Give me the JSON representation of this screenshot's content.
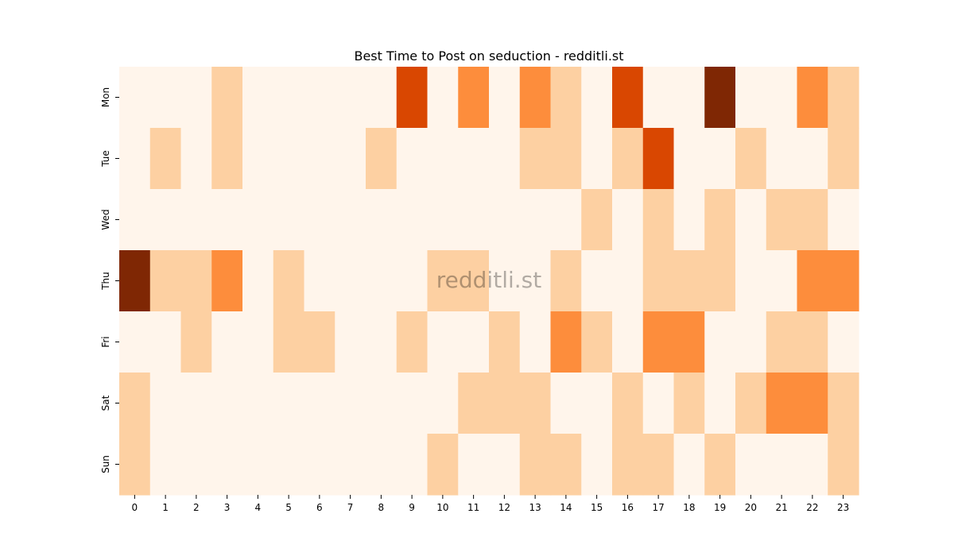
{
  "chart_data": {
    "type": "heatmap",
    "title": "Best Time to Post on seduction - redditli.st",
    "watermark": "redditli.st",
    "xlabel": "",
    "ylabel": "",
    "x_categories": [
      "0",
      "1",
      "2",
      "3",
      "4",
      "5",
      "6",
      "7",
      "8",
      "9",
      "10",
      "11",
      "12",
      "13",
      "14",
      "15",
      "16",
      "17",
      "18",
      "19",
      "20",
      "21",
      "22",
      "23"
    ],
    "y_categories": [
      "Mon",
      "Tue",
      "Wed",
      "Thu",
      "Fri",
      "Sat",
      "Sun"
    ],
    "colormap": "Oranges",
    "levels": [
      "#fff5eb",
      "#fdd0a2",
      "#fd8d3c",
      "#d94701",
      "#7f2704"
    ],
    "values": [
      [
        0,
        0,
        0,
        1,
        0,
        0,
        0,
        0,
        0,
        3,
        0,
        2,
        0,
        2,
        1,
        0,
        3,
        0,
        0,
        4,
        0,
        0,
        2,
        1
      ],
      [
        0,
        1,
        0,
        1,
        0,
        0,
        0,
        0,
        1,
        0,
        0,
        0,
        0,
        1,
        1,
        0,
        1,
        3,
        0,
        0,
        1,
        0,
        0,
        1
      ],
      [
        0,
        0,
        0,
        0,
        0,
        0,
        0,
        0,
        0,
        0,
        0,
        0,
        0,
        0,
        0,
        1,
        0,
        1,
        0,
        1,
        0,
        1,
        1,
        0
      ],
      [
        4,
        1,
        1,
        2,
        0,
        1,
        0,
        0,
        0,
        0,
        1,
        1,
        0,
        0,
        1,
        0,
        0,
        1,
        1,
        1,
        0,
        0,
        2,
        2
      ],
      [
        0,
        0,
        1,
        0,
        0,
        1,
        1,
        0,
        0,
        1,
        0,
        0,
        1,
        0,
        2,
        1,
        0,
        2,
        2,
        0,
        0,
        1,
        1,
        0
      ],
      [
        1,
        0,
        0,
        0,
        0,
        0,
        0,
        0,
        0,
        0,
        0,
        1,
        1,
        1,
        0,
        0,
        1,
        0,
        1,
        0,
        1,
        2,
        2,
        1
      ],
      [
        1,
        0,
        0,
        0,
        0,
        0,
        0,
        0,
        0,
        0,
        1,
        0,
        0,
        1,
        1,
        0,
        1,
        1,
        0,
        1,
        0,
        0,
        0,
        1
      ]
    ]
  }
}
